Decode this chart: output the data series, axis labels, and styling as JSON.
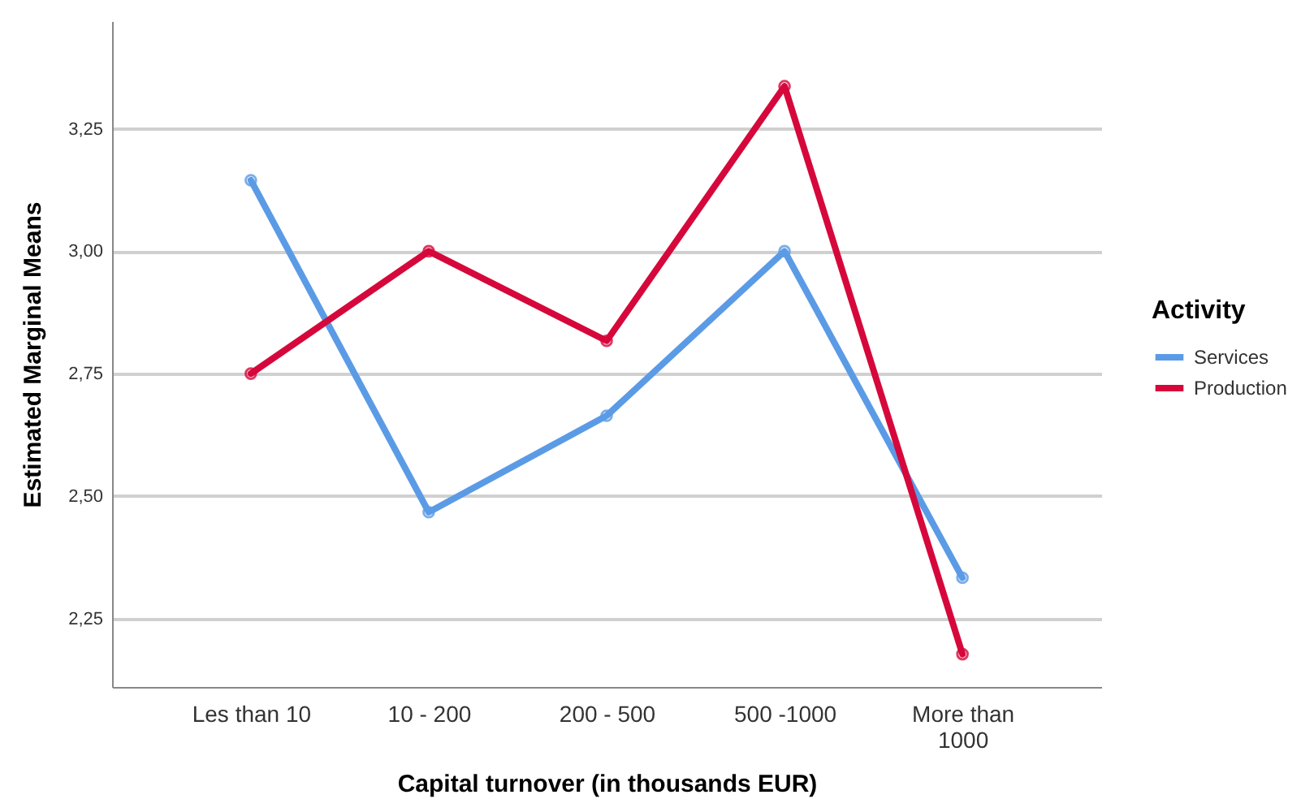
{
  "chart_data": {
    "type": "line",
    "xlabel": "Capital turnover (in thousands EUR)",
    "ylabel": "Estimated Marginal Means",
    "legend_title": "Activity",
    "categories": [
      "Les than 10",
      "10 - 200",
      "200 - 500",
      "500 -1000",
      "More than 1000"
    ],
    "series": [
      {
        "name": "Services",
        "color": "#5b9be6",
        "values": [
          3.145,
          2.467,
          2.664,
          3.0,
          2.333
        ]
      },
      {
        "name": "Production",
        "color": "#d6083b",
        "values": [
          2.75,
          3.0,
          2.817,
          3.337,
          2.177
        ]
      }
    ],
    "ylim": [
      2.11,
      3.47
    ],
    "yticks": [
      {
        "value": 2.25,
        "label": "2,25"
      },
      {
        "value": 2.5,
        "label": "2,50"
      },
      {
        "value": 2.75,
        "label": "2,75"
      },
      {
        "value": 3.0,
        "label": "3,00"
      },
      {
        "value": 3.25,
        "label": "3,25"
      }
    ],
    "grid": "y",
    "legend": "right",
    "marker": "circle",
    "line_style": "solid"
  }
}
